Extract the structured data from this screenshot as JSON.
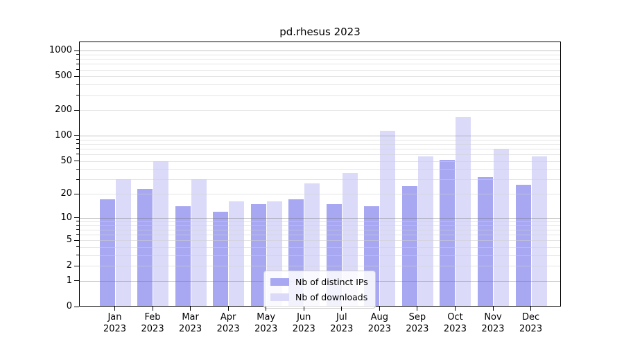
{
  "chart_data": {
    "type": "bar",
    "title": "pd.rhesus 2023",
    "months": [
      "Jan",
      "Feb",
      "Mar",
      "Apr",
      "May",
      "Jun",
      "Jul",
      "Aug",
      "Sep",
      "Oct",
      "Nov",
      "Dec"
    ],
    "year": "2023",
    "series": [
      {
        "name": "Nb of distinct IPs",
        "color": "#a8a8f2",
        "values": [
          17,
          23,
          14,
          12,
          15,
          17,
          15,
          14,
          25,
          52,
          32,
          26
        ]
      },
      {
        "name": "Nb of downloads",
        "color": "#dbdbf9",
        "values": [
          30,
          50,
          30,
          16,
          16,
          27,
          36,
          115,
          57,
          165,
          70,
          57
        ]
      }
    ],
    "yscale": "log1p",
    "ylim": [
      0,
      1280
    ],
    "yticks": [
      0,
      1,
      2,
      5,
      10,
      20,
      50,
      100,
      200,
      500,
      1000
    ],
    "major_gridline_values": [
      1,
      10,
      100,
      1000
    ],
    "grid": true,
    "legend_position": "lower center",
    "colors": {
      "background": "#ffffff",
      "spine": "#000000",
      "major_grid": "#b5b5b5",
      "minor_grid": "#e4e4e4"
    }
  }
}
